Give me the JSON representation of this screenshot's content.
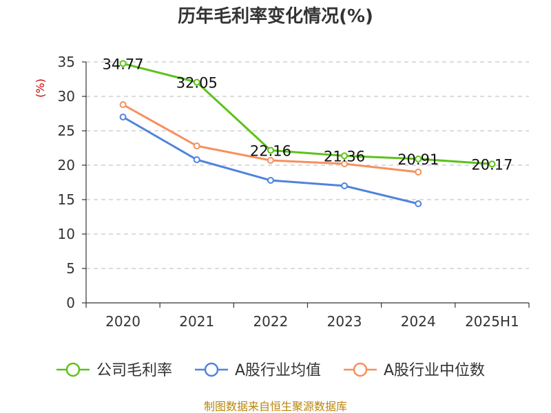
{
  "chart_data": {
    "type": "line",
    "title": "历年毛利率变化情况(%)",
    "ylabel": "(%)",
    "xlabel": "",
    "categories": [
      "2020",
      "2021",
      "2022",
      "2023",
      "2024",
      "2025H1"
    ],
    "ylim": [
      0,
      35
    ],
    "yticks": [
      0,
      5,
      10,
      15,
      20,
      25,
      30,
      35
    ],
    "grid": true,
    "series": [
      {
        "name": "公司毛利率",
        "color": "#5cc21a",
        "values": [
          34.77,
          32.05,
          22.16,
          21.36,
          20.91,
          20.17
        ],
        "labels": [
          "34.77",
          "32.05",
          "22.16",
          "21.36",
          "20.91",
          "20.17"
        ]
      },
      {
        "name": "A股行业均值",
        "color": "#4f83dd",
        "values": [
          27.0,
          20.8,
          17.8,
          17.0,
          14.4,
          null
        ]
      },
      {
        "name": "A股行业中位数",
        "color": "#f78f5b",
        "values": [
          28.8,
          22.8,
          20.7,
          20.2,
          19.0,
          null
        ]
      }
    ],
    "legend_position": "bottom"
  },
  "source": "制图数据来自恒生聚源数据库"
}
